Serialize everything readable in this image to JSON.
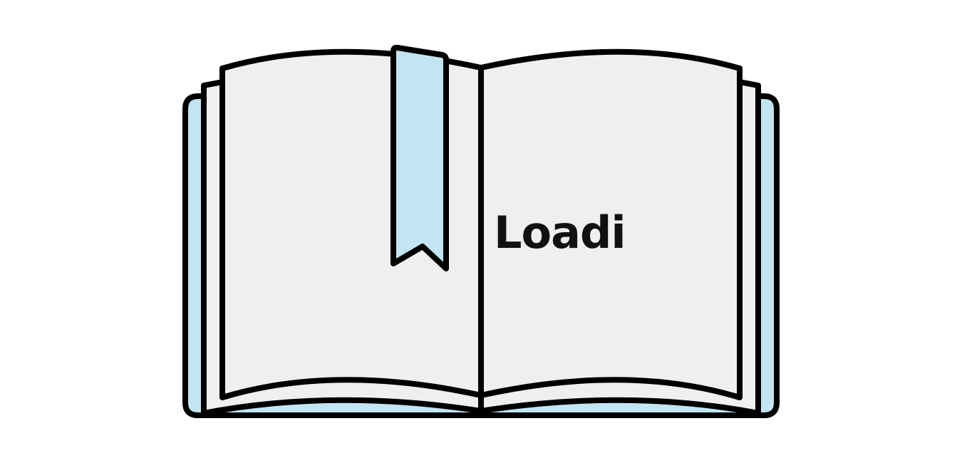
{
  "loading": {
    "text": "Loadi"
  },
  "illustration": {
    "icon": "open-book-with-bookmark-icon",
    "colors": {
      "cover": "#c2e5f2",
      "bookmark": "#c2e5f2",
      "page": "#efefef",
      "outline": "#000000",
      "background": "#ffffff"
    }
  }
}
